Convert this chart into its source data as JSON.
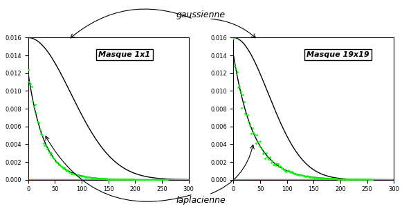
{
  "xlim": [
    0,
    300
  ],
  "ylim": [
    0,
    0.016
  ],
  "yticks": [
    0,
    0.002,
    0.004,
    0.006,
    0.008,
    0.01,
    0.012,
    0.014,
    0.016
  ],
  "xticks": [
    0,
    50,
    100,
    150,
    200,
    250,
    300
  ],
  "label1": "Masque 1x1",
  "label2": "Masque 19x19",
  "gauss_label": "gaussienne",
  "lap_label": "laplacienne",
  "gauss_sigma1": 80,
  "gauss_amp1": 0.016,
  "lap_b1": 0.012,
  "lap_scale1": 30,
  "gauss_sigma2": 65,
  "gauss_amp2": 0.016,
  "lap_b2": 0.014,
  "lap_scale2": 38,
  "scatter_color": "#00ff00",
  "line_color": "#000000",
  "bg_color": "#ffffff"
}
